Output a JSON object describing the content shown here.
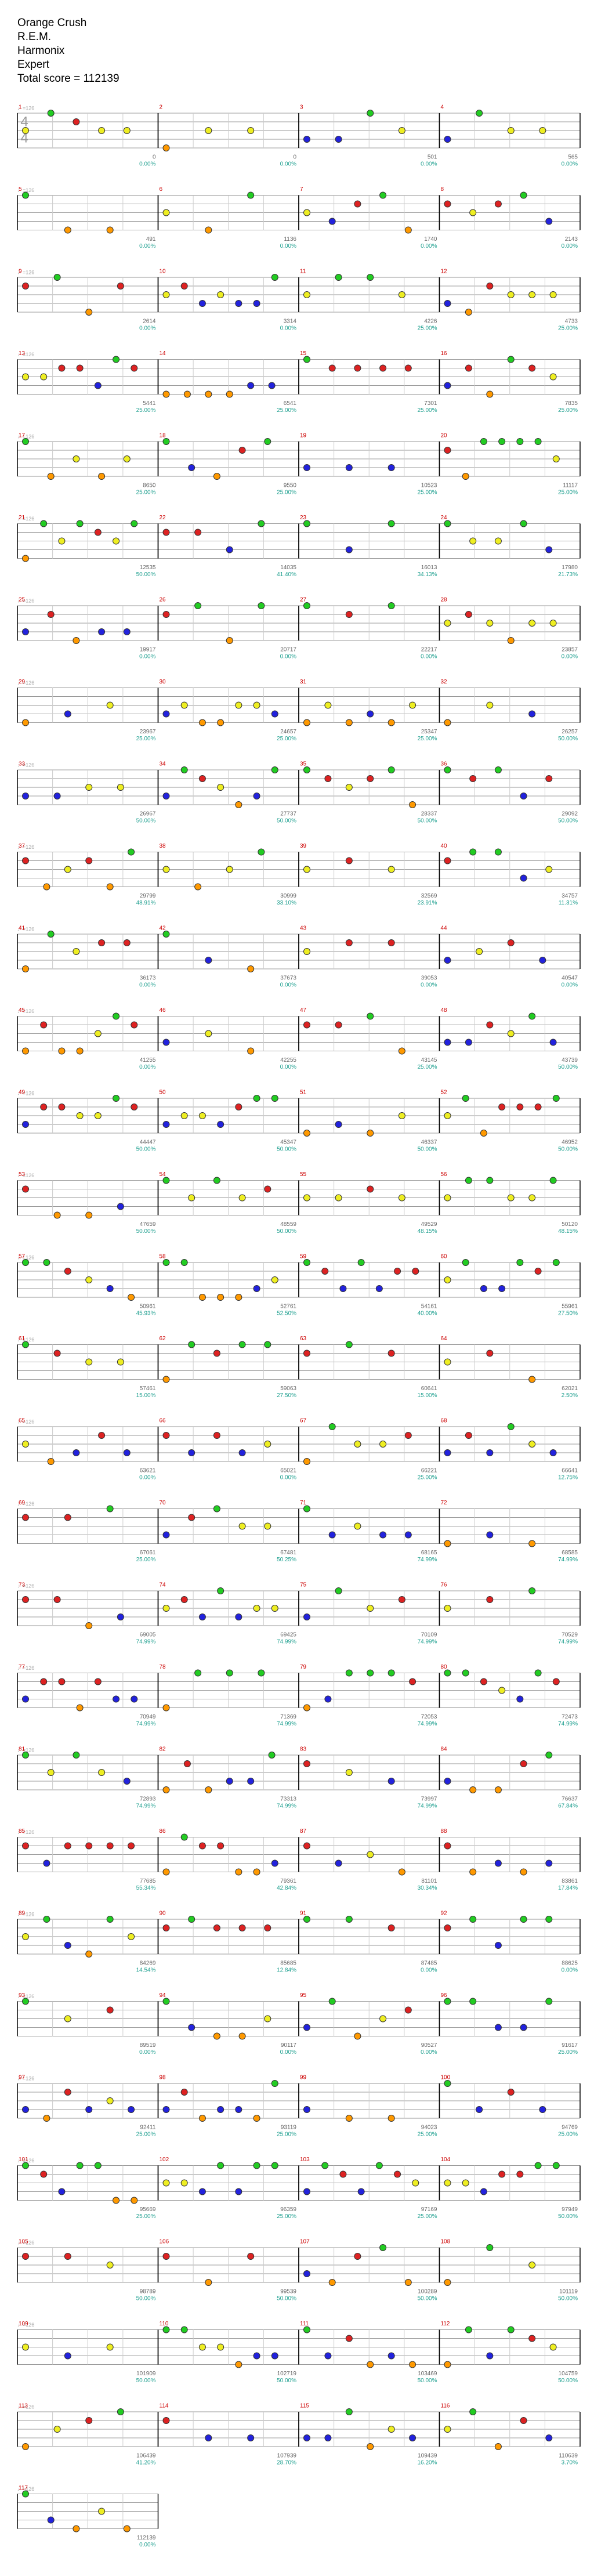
{
  "header": {
    "title": "Orange Crush",
    "artist": "R.E.M.",
    "charter": "Harmonix",
    "difficulty": "Expert",
    "total_score": "Total score = 112139"
  },
  "time_signature": [
    "4",
    "4"
  ],
  "rows": [
    {
      "tempo": "♩=126",
      "measures": [
        {
          "number": "1",
          "score": "0",
          "percent": "0.00%"
        },
        {
          "number": "2",
          "score": "0",
          "percent": "0.00%"
        },
        {
          "number": "3",
          "score": "501",
          "percent": "0.00%"
        },
        {
          "number": "4",
          "score": "565",
          "percent": "0.00%"
        }
      ]
    },
    {
      "tempo": "♩=126",
      "measures": [
        {
          "number": "5",
          "score": "491",
          "percent": "0.00%"
        },
        {
          "number": "6",
          "score": "1136",
          "percent": "0.00%"
        },
        {
          "number": "7",
          "score": "1740",
          "percent": "0.00%"
        },
        {
          "number": "8",
          "score": "2143",
          "percent": "0.00%"
        }
      ]
    },
    {
      "tempo": "♩=126",
      "measures": [
        {
          "number": "9",
          "score": "2614",
          "percent": "0.00%"
        },
        {
          "number": "10",
          "score": "3314",
          "percent": "0.00%"
        },
        {
          "number": "11",
          "score": "4226",
          "percent": "25.00%"
        },
        {
          "number": "12",
          "score": "4733",
          "percent": "25.00%"
        }
      ]
    },
    {
      "tempo": "♩=126",
      "measures": [
        {
          "number": "13",
          "score": "5441",
          "percent": "25.00%"
        },
        {
          "number": "14",
          "score": "6541",
          "percent": "25.00%"
        },
        {
          "number": "15",
          "score": "7301",
          "percent": "25.00%"
        },
        {
          "number": "16",
          "score": "7835",
          "percent": "25.00%"
        }
      ]
    },
    {
      "tempo": "♩=126",
      "measures": [
        {
          "number": "17",
          "score": "8650",
          "percent": "25.00%"
        },
        {
          "number": "18",
          "score": "9550",
          "percent": "25.00%"
        },
        {
          "number": "19",
          "score": "10523",
          "percent": "25.00%"
        },
        {
          "number": "20",
          "score": "11117",
          "percent": "25.00%"
        }
      ]
    },
    {
      "tempo": "♩=126",
      "measures": [
        {
          "number": "21",
          "score": "12535",
          "percent": "50.00%"
        },
        {
          "number": "22",
          "score": "14035",
          "percent": "41.40%"
        },
        {
          "number": "23",
          "score": "16013",
          "percent": "34.13%"
        },
        {
          "number": "24",
          "score": "17980",
          "percent": "21.73%"
        }
      ]
    },
    {
      "tempo": "♩=126",
      "measures": [
        {
          "number": "25",
          "score": "19917",
          "percent": "0.00%"
        },
        {
          "number": "26",
          "score": "20717",
          "percent": "0.00%"
        },
        {
          "number": "27",
          "score": "22217",
          "percent": "0.00%"
        },
        {
          "number": "28",
          "score": "23857",
          "percent": "0.00%"
        }
      ]
    },
    {
      "tempo": "♩=126",
      "measures": [
        {
          "number": "29",
          "score": "23967",
          "percent": "25.00%"
        },
        {
          "number": "30",
          "score": "24657",
          "percent": "25.00%"
        },
        {
          "number": "31",
          "score": "25347",
          "percent": "25.00%"
        },
        {
          "number": "32",
          "score": "26257",
          "percent": "50.00%"
        }
      ]
    },
    {
      "tempo": "♩=126",
      "measures": [
        {
          "number": "33",
          "score": "26967",
          "percent": "50.00%"
        },
        {
          "number": "34",
          "score": "27737",
          "percent": "50.00%"
        },
        {
          "number": "35",
          "score": "28337",
          "percent": "50.00%"
        },
        {
          "number": "36",
          "score": "29092",
          "percent": "50.00%"
        }
      ]
    },
    {
      "tempo": "♩=126",
      "measures": [
        {
          "number": "37",
          "score": "29799",
          "percent": "48.91%"
        },
        {
          "number": "38",
          "score": "30999",
          "percent": "33.10%"
        },
        {
          "number": "39",
          "score": "32569",
          "percent": "23.91%"
        },
        {
          "number": "40",
          "score": "34757",
          "percent": "11.31%"
        }
      ]
    },
    {
      "tempo": "♩=126",
      "measures": [
        {
          "number": "41",
          "score": "36173",
          "percent": "0.00%"
        },
        {
          "number": "42",
          "score": "37673",
          "percent": "0.00%"
        },
        {
          "number": "43",
          "score": "39053",
          "percent": "0.00%"
        },
        {
          "number": "44",
          "score": "40547",
          "percent": "0.00%"
        }
      ]
    },
    {
      "tempo": "♩=126",
      "measures": [
        {
          "number": "45",
          "score": "41255",
          "percent": "0.00%"
        },
        {
          "number": "46",
          "score": "42255",
          "percent": "0.00%"
        },
        {
          "number": "47",
          "score": "43145",
          "percent": "25.00%"
        },
        {
          "number": "48",
          "score": "43739",
          "percent": "50.00%"
        }
      ]
    },
    {
      "tempo": "♩=126",
      "measures": [
        {
          "number": "49",
          "score": "44447",
          "percent": "50.00%"
        },
        {
          "number": "50",
          "score": "45347",
          "percent": "50.00%"
        },
        {
          "number": "51",
          "score": "46337",
          "percent": "50.00%"
        },
        {
          "number": "52",
          "score": "46952",
          "percent": "50.00%"
        }
      ]
    },
    {
      "tempo": "♩=126",
      "measures": [
        {
          "number": "53",
          "score": "47659",
          "percent": "50.00%"
        },
        {
          "number": "54",
          "score": "48559",
          "percent": "50.00%"
        },
        {
          "number": "55",
          "score": "49529",
          "percent": "48.15%"
        },
        {
          "number": "56",
          "score": "50120",
          "percent": "48.15%"
        }
      ]
    },
    {
      "tempo": "♩=126",
      "measures": [
        {
          "number": "57",
          "score": "50961",
          "percent": "45.93%"
        },
        {
          "number": "58",
          "score": "52761",
          "percent": "52.50%"
        },
        {
          "number": "59",
          "score": "54161",
          "percent": "40.00%"
        },
        {
          "number": "60",
          "score": "55961",
          "percent": "27.50%"
        }
      ]
    },
    {
      "tempo": "♩=126",
      "measures": [
        {
          "number": "61",
          "score": "57461",
          "percent": "15.00%"
        },
        {
          "number": "62",
          "score": "59063",
          "percent": "27.50%"
        },
        {
          "number": "63",
          "score": "60641",
          "percent": "15.00%"
        },
        {
          "number": "64",
          "score": "62021",
          "percent": "2.50%"
        }
      ]
    },
    {
      "tempo": "♩=126",
      "measures": [
        {
          "number": "65",
          "score": "63621",
          "percent": "0.00%"
        },
        {
          "number": "66",
          "score": "65021",
          "percent": "0.00%"
        },
        {
          "number": "67",
          "score": "66221",
          "percent": "25.00%"
        },
        {
          "number": "68",
          "score": "66641",
          "percent": "12.75%"
        }
      ]
    },
    {
      "tempo": "♩=126",
      "measures": [
        {
          "number": "69",
          "score": "67061",
          "percent": "25.00%"
        },
        {
          "number": "70",
          "score": "67481",
          "percent": "50.25%"
        },
        {
          "number": "71",
          "score": "68165",
          "percent": "74.99%"
        },
        {
          "number": "72",
          "score": "68585",
          "percent": "74.99%"
        }
      ]
    },
    {
      "tempo": "♩=126",
      "measures": [
        {
          "number": "73",
          "score": "69005",
          "percent": "74.99%"
        },
        {
          "number": "74",
          "score": "69425",
          "percent": "74.99%"
        },
        {
          "number": "75",
          "score": "70109",
          "percent": "74.99%"
        },
        {
          "number": "76",
          "score": "70529",
          "percent": "74.99%"
        }
      ]
    },
    {
      "tempo": "♩=126",
      "measures": [
        {
          "number": "77",
          "score": "70949",
          "percent": "74.99%"
        },
        {
          "number": "78",
          "score": "71369",
          "percent": "74.99%"
        },
        {
          "number": "79",
          "score": "72053",
          "percent": "74.99%"
        },
        {
          "number": "80",
          "score": "72473",
          "percent": "74.99%"
        }
      ]
    },
    {
      "tempo": "♩=126",
      "measures": [
        {
          "number": "81",
          "score": "72893",
          "percent": "74.99%"
        },
        {
          "number": "82",
          "score": "73313",
          "percent": "74.99%"
        },
        {
          "number": "83",
          "score": "73997",
          "percent": "74.99%"
        },
        {
          "number": "84",
          "score": "76637",
          "percent": "67.84%"
        }
      ]
    },
    {
      "tempo": "♩=126",
      "measures": [
        {
          "number": "85",
          "score": "77685",
          "percent": "55.34%"
        },
        {
          "number": "86",
          "score": "79361",
          "percent": "42.84%"
        },
        {
          "number": "87",
          "score": "81101",
          "percent": "30.34%"
        },
        {
          "number": "88",
          "score": "83861",
          "percent": "17.84%"
        }
      ]
    },
    {
      "tempo": "♩=126",
      "measures": [
        {
          "number": "89",
          "score": "84269",
          "percent": "14.54%"
        },
        {
          "number": "90",
          "score": "85685",
          "percent": "12.84%"
        },
        {
          "number": "91",
          "score": "87485",
          "percent": "0.00%"
        },
        {
          "number": "92",
          "score": "88625",
          "percent": "0.00%"
        }
      ]
    },
    {
      "tempo": "♩=126",
      "measures": [
        {
          "number": "93",
          "score": "89519",
          "percent": "0.00%"
        },
        {
          "number": "94",
          "score": "90117",
          "percent": "0.00%"
        },
        {
          "number": "95",
          "score": "90527",
          "percent": "0.00%"
        },
        {
          "number": "96",
          "score": "91617",
          "percent": "25.00%"
        }
      ]
    },
    {
      "tempo": "♩=126",
      "measures": [
        {
          "number": "97",
          "score": "92411",
          "percent": "25.00%"
        },
        {
          "number": "98",
          "score": "93119",
          "percent": "25.00%"
        },
        {
          "number": "99",
          "score": "94023",
          "percent": "25.00%"
        },
        {
          "number": "100",
          "score": "94769",
          "percent": "25.00%"
        }
      ]
    },
    {
      "tempo": "♩=126",
      "measures": [
        {
          "number": "101",
          "score": "95669",
          "percent": "25.00%"
        },
        {
          "number": "102",
          "score": "96359",
          "percent": "25.00%"
        },
        {
          "number": "103",
          "score": "97169",
          "percent": "25.00%"
        },
        {
          "number": "104",
          "score": "97949",
          "percent": "50.00%"
        }
      ]
    },
    {
      "tempo": "♩=126",
      "measures": [
        {
          "number": "105",
          "score": "98789",
          "percent": "50.00%"
        },
        {
          "number": "106",
          "score": "99539",
          "percent": "50.00%"
        },
        {
          "number": "107",
          "score": "100289",
          "percent": "50.00%"
        },
        {
          "number": "108",
          "score": "101119",
          "percent": "50.00%"
        }
      ]
    },
    {
      "tempo": "♩=126",
      "measures": [
        {
          "number": "109",
          "score": "101909",
          "percent": "50.00%"
        },
        {
          "number": "110",
          "score": "102719",
          "percent": "50.00%"
        },
        {
          "number": "111",
          "score": "103469",
          "percent": "50.00%"
        },
        {
          "number": "112",
          "score": "104759",
          "percent": "50.00%"
        }
      ]
    },
    {
      "tempo": "♩=126",
      "measures": [
        {
          "number": "113",
          "score": "106439",
          "percent": "41.20%"
        },
        {
          "number": "114",
          "score": "107939",
          "percent": "28.70%"
        },
        {
          "number": "115",
          "score": "109439",
          "percent": "16.20%"
        },
        {
          "number": "116",
          "score": "110639",
          "percent": "3.70%"
        }
      ]
    },
    {
      "tempo": "♩=126",
      "measures": [
        {
          "number": "117",
          "score": "112139",
          "percent": "0.00%"
        }
      ]
    }
  ]
}
